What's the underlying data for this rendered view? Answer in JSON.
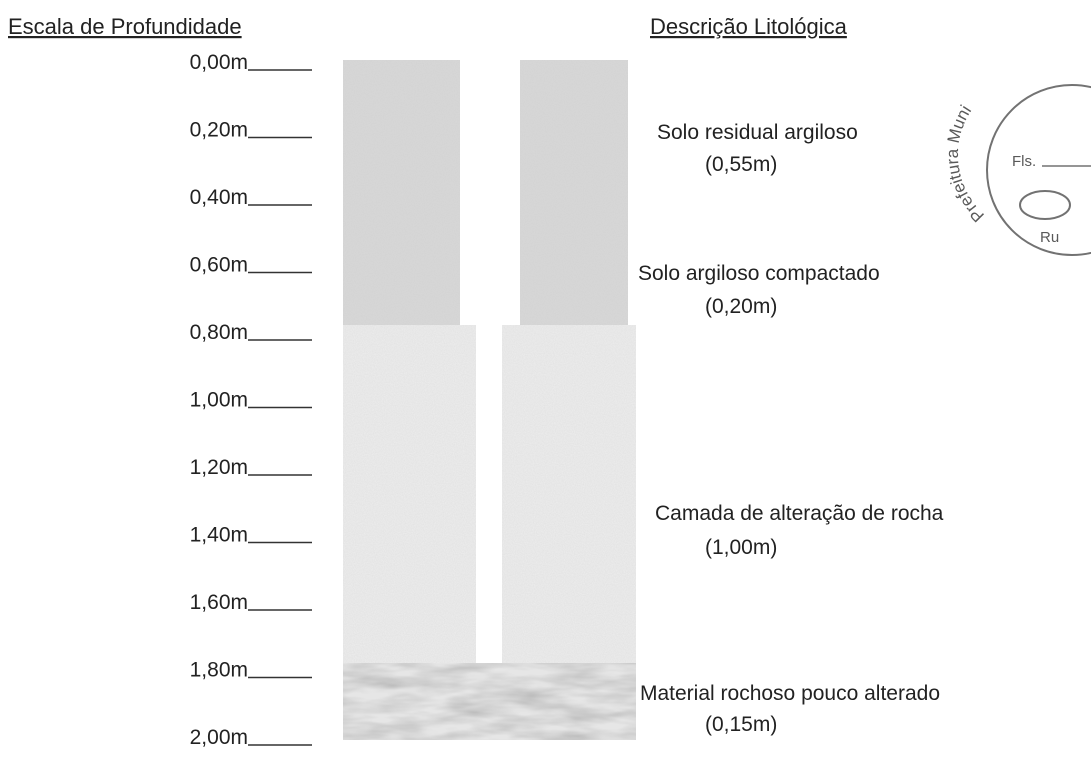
{
  "header": {
    "left_title": "Escala de Profundidade",
    "right_title": "Descrição Litológica"
  },
  "depth_scale": [
    "0,00m",
    "0,20m",
    "0,40m",
    "0,60m",
    "0,80m",
    "1,00m",
    "1,20m",
    "1,40m",
    "1,60m",
    "1,80m",
    "2,00m"
  ],
  "layers": [
    {
      "name": "Solo residual argiloso",
      "thickness": "(0,55m)"
    },
    {
      "name": "Solo argiloso compactado",
      "thickness": "(0,20m)"
    },
    {
      "name": "Camada de alteração de rocha",
      "thickness": "(1,00m)"
    },
    {
      "name": "Material rochoso pouco alterado",
      "thickness": "(0,15m)"
    }
  ],
  "stamp": {
    "arc_text": "Prefeitura Muni",
    "sheet": "Fls.",
    "initials": "Ru"
  }
}
